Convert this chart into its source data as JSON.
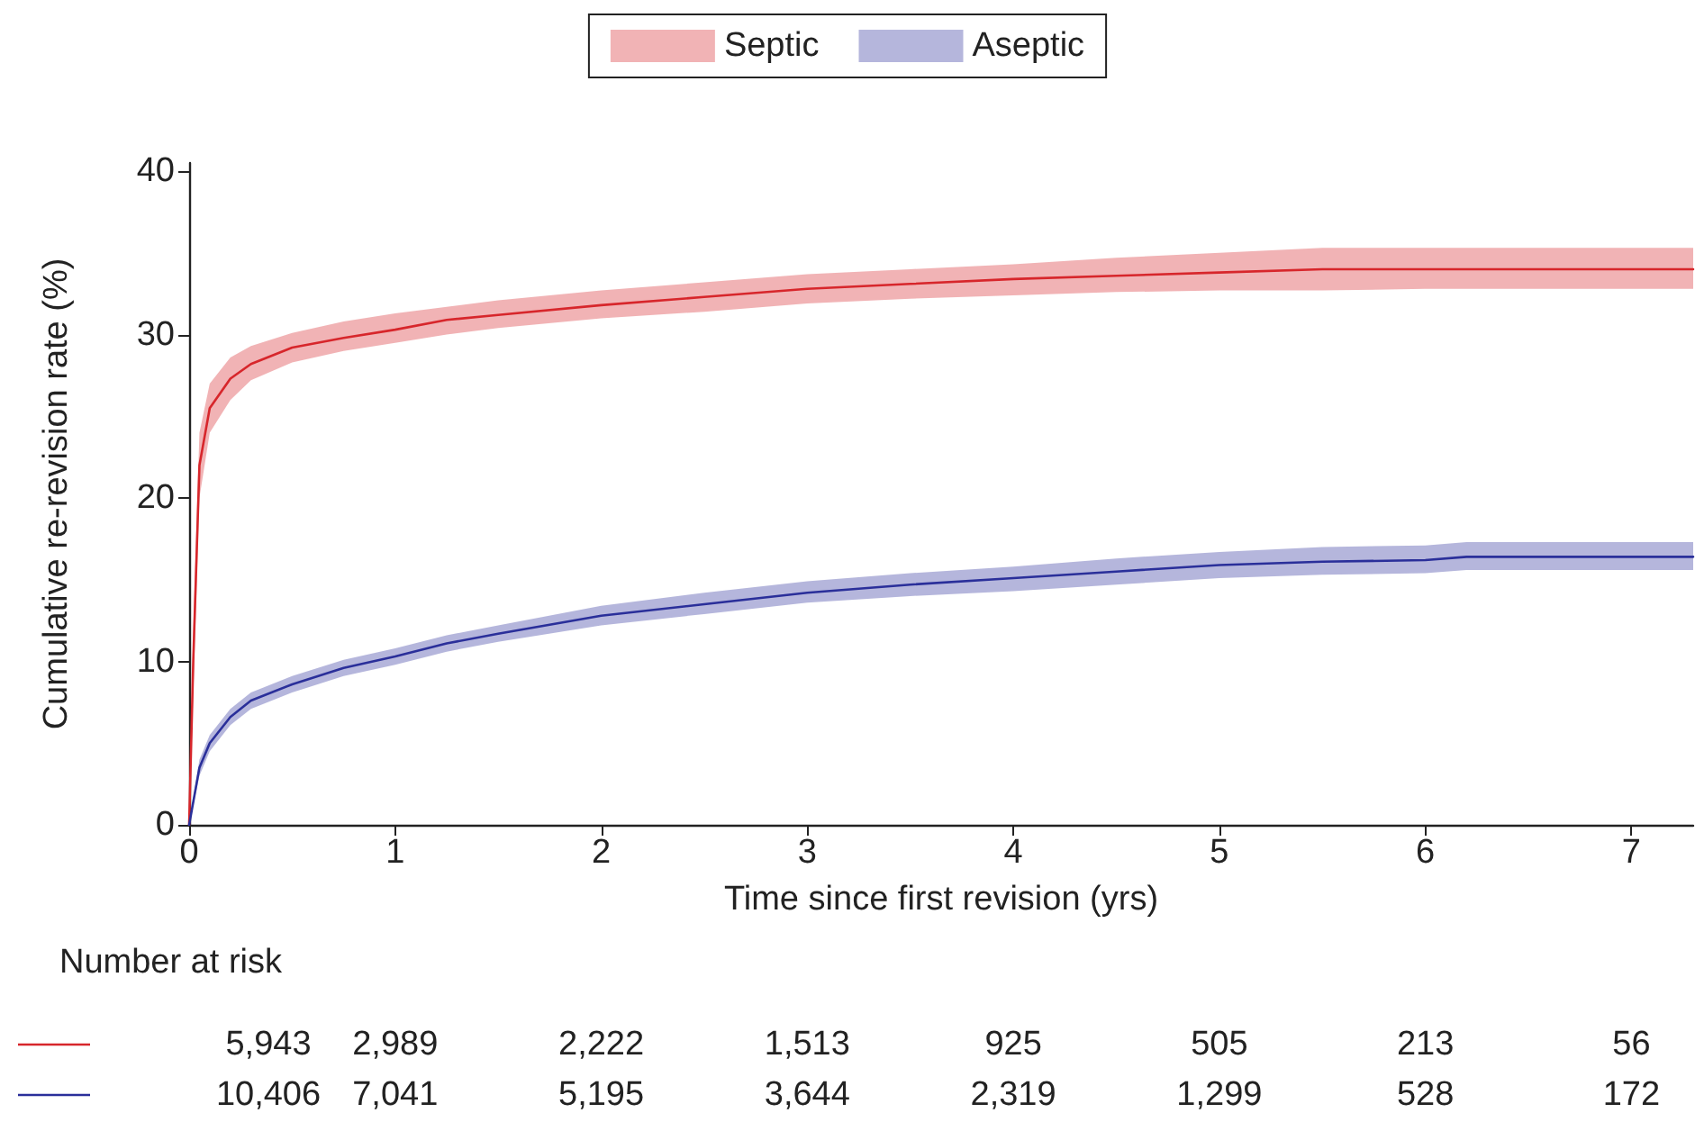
{
  "chart_data": {
    "type": "line",
    "xlabel": "Time since first revision (yrs)",
    "ylabel": "Cumulative re-revision rate (%)",
    "xlim": [
      0,
      7.3
    ],
    "xticks": [
      0,
      1,
      2,
      3,
      4,
      5,
      6,
      7
    ],
    "ylim": [
      0,
      40.5
    ],
    "yticks": [
      0,
      10,
      20,
      30,
      40
    ],
    "grid": false,
    "legend": "top",
    "marker": "none",
    "line_style": "solid",
    "series": [
      {
        "name": "Septic",
        "color": "#d7262b",
        "x": [
          0,
          0.02,
          0.05,
          0.1,
          0.2,
          0.3,
          0.5,
          0.75,
          1,
          1.25,
          1.5,
          2,
          2.5,
          3,
          3.5,
          4,
          4.5,
          5,
          5.5,
          6,
          7,
          7.3
        ],
        "values": [
          0,
          10,
          22,
          25.5,
          27.3,
          28.2,
          29.2,
          29.8,
          30.3,
          30.9,
          31.2,
          31.8,
          32.3,
          32.8,
          33.1,
          33.4,
          33.6,
          33.8,
          34,
          34,
          34,
          34
        ],
        "lower": [
          0,
          8,
          20,
          24,
          26,
          27.2,
          28.3,
          29,
          29.5,
          30,
          30.4,
          31,
          31.4,
          31.9,
          32.2,
          32.4,
          32.6,
          32.7,
          32.7,
          32.8,
          32.8,
          32.8
        ],
        "upper": [
          0,
          12,
          24,
          27,
          28.6,
          29.3,
          30.1,
          30.8,
          31.3,
          31.7,
          32.1,
          32.7,
          33.2,
          33.7,
          34,
          34.3,
          34.7,
          35,
          35.3,
          35.3,
          35.3,
          35.3
        ]
      },
      {
        "name": "Aseptic",
        "color": "#2a2f9a",
        "x": [
          0,
          0.05,
          0.1,
          0.2,
          0.3,
          0.5,
          0.75,
          1,
          1.25,
          1.5,
          2,
          2.5,
          3,
          3.5,
          4,
          4.5,
          5,
          5.5,
          6,
          6.2,
          7.3
        ],
        "values": [
          0,
          3.5,
          5,
          6.6,
          7.6,
          8.6,
          9.6,
          10.3,
          11.1,
          11.7,
          12.8,
          13.5,
          14.2,
          14.7,
          15.1,
          15.5,
          15.9,
          16.1,
          16.2,
          16.4,
          16.4
        ],
        "lower": [
          0,
          3,
          4.5,
          6.1,
          7.1,
          8.1,
          9.1,
          9.8,
          10.6,
          11.2,
          12.2,
          12.9,
          13.6,
          14,
          14.3,
          14.7,
          15.1,
          15.3,
          15.4,
          15.6,
          15.6
        ],
        "upper": [
          0,
          4,
          5.5,
          7.1,
          8.1,
          9.1,
          10.1,
          10.8,
          11.6,
          12.2,
          13.4,
          14.2,
          14.9,
          15.4,
          15.8,
          16.3,
          16.7,
          17,
          17.1,
          17.3,
          17.3
        ]
      }
    ],
    "annotations": [
      "Number at risk",
      "5,943",
      "2,989",
      "2,222",
      "1,513",
      "925",
      "505",
      "213",
      "56",
      "10,406",
      "7,041",
      "5,195",
      "3,644",
      "2,319",
      "1,299",
      "528",
      "172"
    ]
  }
}
